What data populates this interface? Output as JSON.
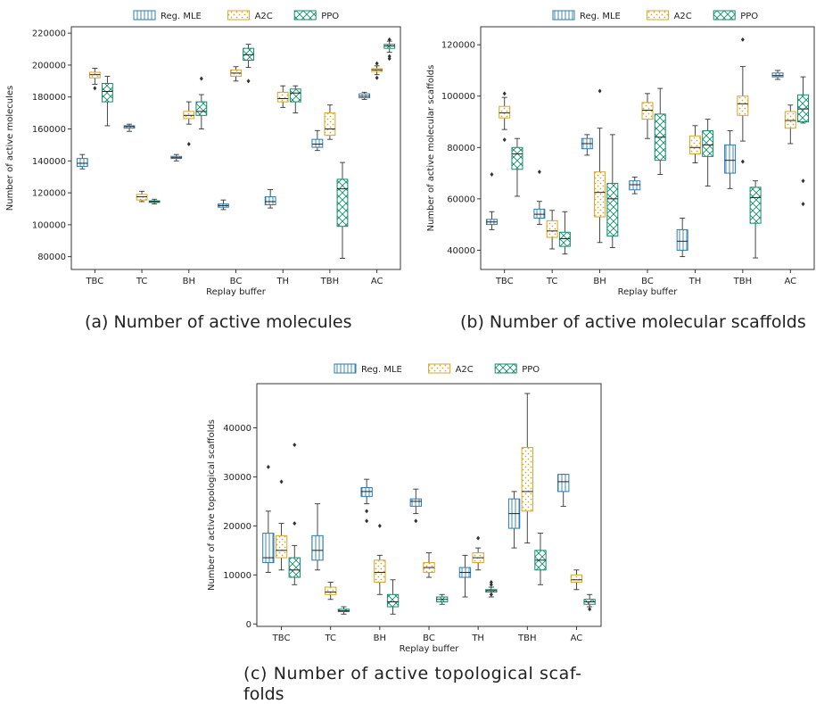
{
  "colors": {
    "reg_mle": "#2b7bb2",
    "a2c": "#d9a427",
    "ppo": "#138c6b"
  },
  "captions": {
    "a": "(a) Number of active molecules",
    "b": "(b) Number of active molecular scaffolds",
    "c_line1": "(c) Number of active topological scaf-",
    "c_line2": "folds"
  },
  "chart_data": [
    {
      "type": "box",
      "xlabel": "Replay buffer",
      "ylabel": "Number of active molecules",
      "categories": [
        "TBC",
        "TC",
        "BH",
        "BC",
        "TH",
        "TBH",
        "AC"
      ],
      "ylim": [
        72000,
        224000
      ],
      "yticks": [
        80000,
        100000,
        120000,
        140000,
        160000,
        180000,
        200000,
        220000
      ],
      "legend": "top",
      "series": [
        {
          "name": "Reg. MLE",
          "color": "#2b7bb2",
          "hatch": "vlines",
          "boxes": [
            {
              "min": 135000,
              "q1": 136500,
              "med": 138500,
              "q3": 141500,
              "max": 144000,
              "fliers": []
            },
            {
              "min": 158500,
              "q1": 160500,
              "med": 161500,
              "q3": 162000,
              "max": 163000,
              "fliers": []
            },
            {
              "min": 140000,
              "q1": 141500,
              "med": 142000,
              "q3": 142800,
              "max": 144000,
              "fliers": []
            },
            {
              "min": 109500,
              "q1": 111000,
              "med": 112000,
              "q3": 113000,
              "max": 115500,
              "fliers": []
            },
            {
              "min": 110500,
              "q1": 112500,
              "med": 114500,
              "q3": 117500,
              "max": 122000,
              "fliers": []
            },
            {
              "min": 146500,
              "q1": 148500,
              "med": 150500,
              "q3": 153500,
              "max": 159000,
              "fliers": []
            },
            {
              "min": 178500,
              "q1": 179500,
              "med": 180500,
              "q3": 182000,
              "max": 183000,
              "fliers": []
            }
          ]
        },
        {
          "name": "A2C",
          "color": "#d9a427",
          "hatch": "dots",
          "boxes": [
            {
              "min": 188000,
              "q1": 192000,
              "med": 194000,
              "q3": 195500,
              "max": 198000,
              "fliers": [
                185500
              ]
            },
            {
              "min": 114500,
              "q1": 115500,
              "med": 117500,
              "q3": 119000,
              "max": 121000,
              "fliers": []
            },
            {
              "min": 163000,
              "q1": 166500,
              "med": 168500,
              "q3": 171000,
              "max": 177000,
              "fliers": [
                150500
              ]
            },
            {
              "min": 190000,
              "q1": 193000,
              "med": 195000,
              "q3": 197000,
              "max": 199000,
              "fliers": []
            },
            {
              "min": 173500,
              "q1": 177000,
              "med": 179000,
              "q3": 183000,
              "max": 187000,
              "fliers": []
            },
            {
              "min": 153500,
              "q1": 156000,
              "med": 160000,
              "q3": 170000,
              "max": 175000,
              "fliers": []
            },
            {
              "min": 194000,
              "q1": 196000,
              "med": 197000,
              "q3": 197800,
              "max": 199500,
              "fliers": [
                192000,
                201000
              ]
            }
          ]
        },
        {
          "name": "PPO",
          "color": "#138c6b",
          "hatch": "cross",
          "boxes": [
            {
              "min": 162000,
              "q1": 177000,
              "med": 183500,
              "q3": 188500,
              "max": 193000,
              "fliers": []
            },
            {
              "min": 113000,
              "q1": 114000,
              "med": 114500,
              "q3": 115000,
              "max": 116000,
              "fliers": []
            },
            {
              "min": 160000,
              "q1": 168500,
              "med": 171000,
              "q3": 177000,
              "max": 181500,
              "fliers": [
                191500
              ]
            },
            {
              "min": 198500,
              "q1": 203000,
              "med": 206500,
              "q3": 210500,
              "max": 213000,
              "fliers": [
                190000
              ]
            },
            {
              "min": 170000,
              "q1": 177000,
              "med": 182500,
              "q3": 185000,
              "max": 187000,
              "fliers": []
            },
            {
              "min": 79000,
              "q1": 99000,
              "med": 122500,
              "q3": 128500,
              "max": 139000,
              "fliers": []
            },
            {
              "min": 208000,
              "q1": 210500,
              "med": 212000,
              "q3": 213000,
              "max": 215000,
              "fliers": [
                204000,
                205500,
                216000
              ]
            }
          ]
        }
      ]
    },
    {
      "type": "box",
      "xlabel": "Replay buffer",
      "ylabel": "Number of active molecular scaffolds",
      "categories": [
        "TBC",
        "TC",
        "BH",
        "BC",
        "TH",
        "TBH",
        "AC"
      ],
      "ylim": [
        32500,
        127000
      ],
      "yticks": [
        40000,
        60000,
        80000,
        100000,
        120000
      ],
      "legend": "top",
      "series": [
        {
          "name": "Reg. MLE",
          "color": "#2b7bb2",
          "hatch": "vlines",
          "boxes": [
            {
              "min": 48000,
              "q1": 50000,
              "med": 51000,
              "q3": 52000,
              "max": 55000,
              "fliers": [
                69500
              ]
            },
            {
              "min": 50000,
              "q1": 52500,
              "med": 54000,
              "q3": 56000,
              "max": 59000,
              "fliers": [
                70500
              ]
            },
            {
              "min": 77000,
              "q1": 79500,
              "med": 81500,
              "q3": 83500,
              "max": 85000,
              "fliers": []
            },
            {
              "min": 62000,
              "q1": 63500,
              "med": 65500,
              "q3": 67000,
              "max": 68500,
              "fliers": []
            },
            {
              "min": 37500,
              "q1": 40000,
              "med": 43500,
              "q3": 48000,
              "max": 52500,
              "fliers": []
            },
            {
              "min": 64000,
              "q1": 70000,
              "med": 75000,
              "q3": 81000,
              "max": 86500,
              "fliers": []
            },
            {
              "min": 106500,
              "q1": 107500,
              "med": 108000,
              "q3": 109000,
              "max": 110000,
              "fliers": []
            }
          ]
        },
        {
          "name": "A2C",
          "color": "#d9a427",
          "hatch": "dots",
          "boxes": [
            {
              "min": 87000,
              "q1": 91500,
              "med": 93500,
              "q3": 96000,
              "max": 99500,
              "fliers": [
                83000,
                101000
              ]
            },
            {
              "min": 40500,
              "q1": 45000,
              "med": 47500,
              "q3": 51500,
              "max": 55500,
              "fliers": []
            },
            {
              "min": 43000,
              "q1": 53000,
              "med": 62500,
              "q3": 70500,
              "max": 87500,
              "fliers": [
                102000
              ]
            },
            {
              "min": 83500,
              "q1": 91000,
              "med": 94500,
              "q3": 97500,
              "max": 101000,
              "fliers": []
            },
            {
              "min": 74000,
              "q1": 77500,
              "med": 80000,
              "q3": 84500,
              "max": 88500,
              "fliers": []
            },
            {
              "min": 82500,
              "q1": 92500,
              "med": 97000,
              "q3": 100000,
              "max": 111500,
              "fliers": [
                74500,
                122000
              ]
            },
            {
              "min": 81500,
              "q1": 87500,
              "med": 90500,
              "q3": 94000,
              "max": 96500,
              "fliers": []
            }
          ]
        },
        {
          "name": "PPO",
          "color": "#138c6b",
          "hatch": "cross",
          "boxes": [
            {
              "min": 61000,
              "q1": 71500,
              "med": 77500,
              "q3": 80000,
              "max": 83500,
              "fliers": []
            },
            {
              "min": 38500,
              "q1": 41500,
              "med": 44500,
              "q3": 47000,
              "max": 55000,
              "fliers": []
            },
            {
              "min": 41000,
              "q1": 45500,
              "med": 60000,
              "q3": 66000,
              "max": 85000,
              "fliers": []
            },
            {
              "min": 69500,
              "q1": 75000,
              "med": 84000,
              "q3": 93000,
              "max": 103000,
              "fliers": []
            },
            {
              "min": 65000,
              "q1": 76500,
              "med": 81000,
              "q3": 86500,
              "max": 91000,
              "fliers": []
            },
            {
              "min": 37000,
              "q1": 50500,
              "med": 60500,
              "q3": 64500,
              "max": 67000,
              "fliers": []
            },
            {
              "min": 89500,
              "q1": 90000,
              "med": 95000,
              "q3": 100500,
              "max": 107500,
              "fliers": [
                58000,
                67000
              ]
            }
          ]
        }
      ]
    },
    {
      "type": "box",
      "xlabel": "Replay buffer",
      "ylabel": "Number of active topological scaffolds",
      "categories": [
        "TBC",
        "TC",
        "BH",
        "BC",
        "TH",
        "TBH",
        "AC"
      ],
      "ylim": [
        -500,
        49000
      ],
      "yticks": [
        0,
        10000,
        20000,
        30000,
        40000
      ],
      "legend": "top",
      "series": [
        {
          "name": "Reg. MLE",
          "color": "#2b7bb2",
          "hatch": "vlines",
          "boxes": [
            {
              "min": 10500,
              "q1": 12500,
              "med": 13500,
              "q3": 18500,
              "max": 23000,
              "fliers": [
                32000
              ]
            },
            {
              "min": 11000,
              "q1": 13000,
              "med": 15000,
              "q3": 18000,
              "max": 24500,
              "fliers": []
            },
            {
              "min": 24500,
              "q1": 26000,
              "med": 27000,
              "q3": 27800,
              "max": 29500,
              "fliers": [
                21000,
                23000
              ]
            },
            {
              "min": 22500,
              "q1": 24000,
              "med": 25000,
              "q3": 25500,
              "max": 27500,
              "fliers": [
                21000
              ]
            },
            {
              "min": 5500,
              "q1": 9500,
              "med": 10500,
              "q3": 11500,
              "max": 14000,
              "fliers": []
            },
            {
              "min": 15500,
              "q1": 19500,
              "med": 22500,
              "q3": 25500,
              "max": 27000,
              "fliers": []
            },
            {
              "min": 24000,
              "q1": 27000,
              "med": 29000,
              "q3": 30500,
              "max": 30500,
              "fliers": []
            }
          ]
        },
        {
          "name": "A2C",
          "color": "#d9a427",
          "hatch": "dots",
          "boxes": [
            {
              "min": 11000,
              "q1": 13500,
              "med": 15000,
              "q3": 18000,
              "max": 20500,
              "fliers": [
                29000
              ]
            },
            {
              "min": 5000,
              "q1": 6000,
              "med": 6500,
              "q3": 7500,
              "max": 8500,
              "fliers": []
            },
            {
              "min": 6000,
              "q1": 8500,
              "med": 10500,
              "q3": 13000,
              "max": 14000,
              "fliers": [
                20000
              ]
            },
            {
              "min": 9500,
              "q1": 10500,
              "med": 11500,
              "q3": 12500,
              "max": 14500,
              "fliers": []
            },
            {
              "min": 11000,
              "q1": 12500,
              "med": 13500,
              "q3": 14500,
              "max": 15500,
              "fliers": [
                17500
              ]
            },
            {
              "min": 16500,
              "q1": 23000,
              "med": 27000,
              "q3": 36000,
              "max": 47000,
              "fliers": []
            },
            {
              "min": 7000,
              "q1": 8500,
              "med": 9000,
              "q3": 10000,
              "max": 11000,
              "fliers": []
            }
          ]
        },
        {
          "name": "PPO",
          "color": "#138c6b",
          "hatch": "cross",
          "boxes": [
            {
              "min": 8000,
              "q1": 9500,
              "med": 11000,
              "q3": 13500,
              "max": 16000,
              "fliers": [
                20500,
                36500
              ]
            },
            {
              "min": 2000,
              "q1": 2500,
              "med": 2700,
              "q3": 3000,
              "max": 3500,
              "fliers": []
            },
            {
              "min": 2000,
              "q1": 3500,
              "med": 4500,
              "q3": 6000,
              "max": 9000,
              "fliers": []
            },
            {
              "min": 4000,
              "q1": 4500,
              "med": 5000,
              "q3": 5500,
              "max": 6000,
              "fliers": []
            },
            {
              "min": 5500,
              "q1": 6500,
              "med": 6800,
              "q3": 7000,
              "max": 7500,
              "fliers": [
                6000,
                8000,
                8500
              ]
            },
            {
              "min": 8000,
              "q1": 11000,
              "med": 13000,
              "q3": 15000,
              "max": 18500,
              "fliers": []
            },
            {
              "min": 3500,
              "q1": 4000,
              "med": 4500,
              "q3": 5000,
              "max": 6000,
              "fliers": [
                3000
              ]
            }
          ]
        }
      ]
    }
  ]
}
